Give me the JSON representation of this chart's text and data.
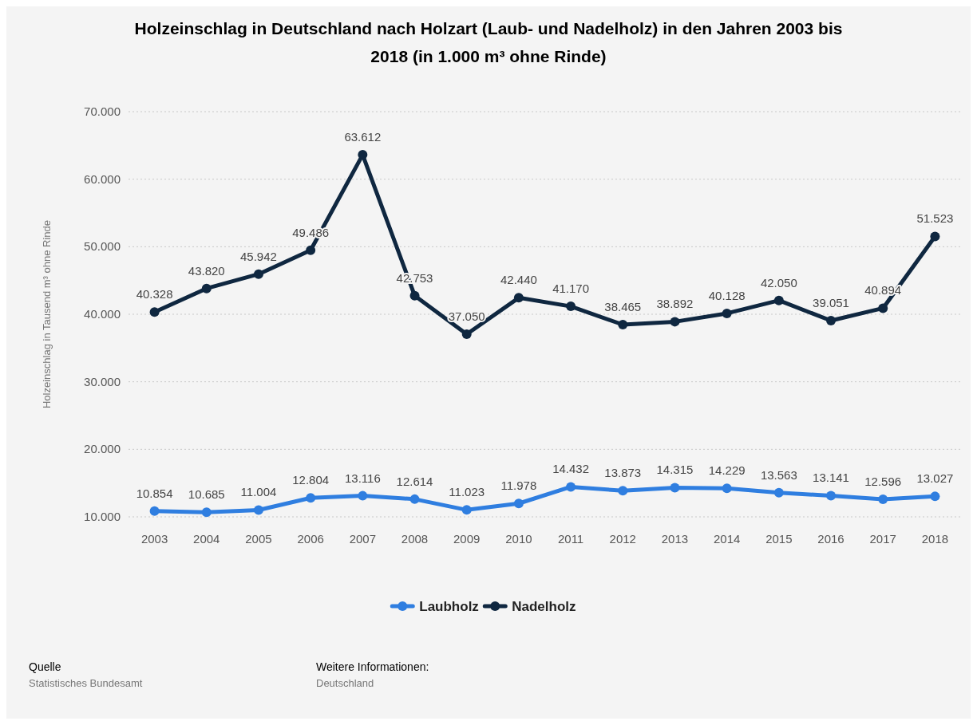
{
  "chart_data": {
    "type": "line",
    "title": "Holzeinschlag in Deutschland nach Holzart (Laub- und Nadelholz) in den Jahren 2003 bis 2018 (in 1.000 m³ ohne Rinde)",
    "ylabel": "Holzeinschlag in Tausend m³ ohne Rinde",
    "categories": [
      "2003",
      "2004",
      "2005",
      "2006",
      "2007",
      "2008",
      "2009",
      "2010",
      "2011",
      "2012",
      "2013",
      "2014",
      "2015",
      "2016",
      "2017",
      "2018"
    ],
    "series": [
      {
        "name": "Laubholz",
        "color": "#2f7ee0",
        "values": [
          10854,
          10685,
          11004,
          12804,
          13116,
          12614,
          11023,
          11978,
          14432,
          13873,
          14315,
          14229,
          13563,
          13141,
          12596,
          13027
        ],
        "value_labels": [
          "10.854",
          "10.685",
          "11.004",
          "12.804",
          "13.116",
          "12.614",
          "11.023",
          "11.978",
          "14.432",
          "13.873",
          "14.315",
          "14.229",
          "13.563",
          "13.141",
          "12.596",
          "13.027"
        ]
      },
      {
        "name": "Nadelholz",
        "color": "#0f2740",
        "values": [
          40328,
          43820,
          45942,
          49486,
          63612,
          42753,
          37050,
          42440,
          41170,
          38465,
          38892,
          40128,
          42050,
          39051,
          40894,
          51523
        ],
        "value_labels": [
          "40.328",
          "43.820",
          "45.942",
          "49.486",
          "63.612",
          "42.753",
          "37.050",
          "42.440",
          "41.170",
          "38.465",
          "38.892",
          "40.128",
          "42.050",
          "39.051",
          "40.894",
          "51.523"
        ]
      }
    ],
    "ylim": [
      10000,
      70000
    ],
    "yticks": [
      {
        "value": 10000,
        "label": "10.000"
      },
      {
        "value": 20000,
        "label": "20.000"
      },
      {
        "value": 30000,
        "label": "30.000"
      },
      {
        "value": 40000,
        "label": "40.000"
      },
      {
        "value": 50000,
        "label": "50.000"
      },
      {
        "value": 60000,
        "label": "60.000"
      },
      {
        "value": 70000,
        "label": "70.000"
      }
    ],
    "grid": "y",
    "legend": "bottom",
    "marker": "circle",
    "line_style": "solid",
    "annotations": [
      "Quelle",
      "Statistisches Bundesamt",
      "Weitere Informationen:",
      "Deutschland"
    ]
  }
}
